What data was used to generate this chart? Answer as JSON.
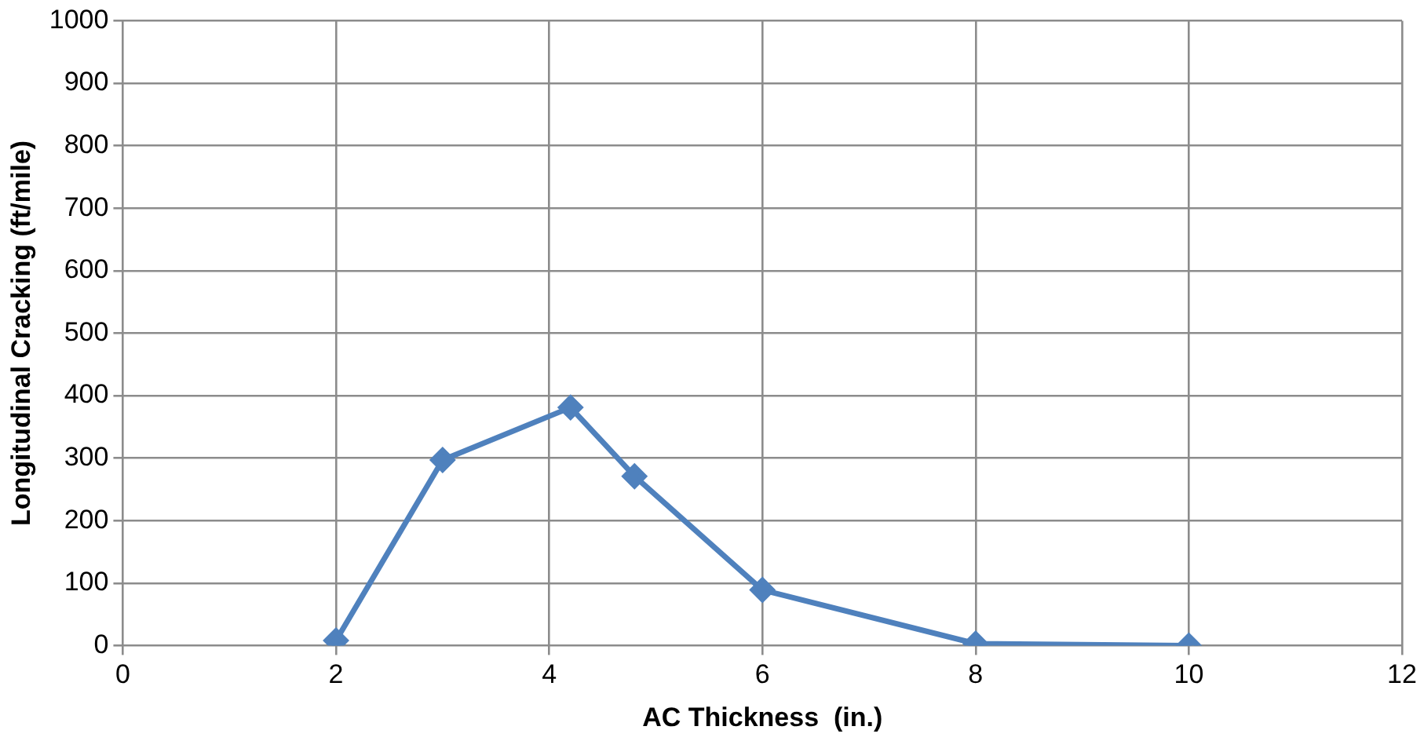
{
  "chart_data": {
    "type": "line",
    "xlabel": "AC Thickness  (in.)",
    "ylabel": "Longitudinal Cracking (ft/mile)",
    "x": [
      2,
      3,
      4.2,
      4.8,
      6,
      8,
      10
    ],
    "series": [
      {
        "color": "#4f81bd",
        "values": [
          8,
          297,
          381,
          271,
          89,
          3,
          0
        ]
      }
    ],
    "xlim": [
      0,
      12
    ],
    "xticks": [
      0,
      2,
      4,
      6,
      8,
      10,
      12
    ],
    "ylim": [
      0,
      1000
    ],
    "yticks": [
      0,
      100,
      200,
      300,
      400,
      500,
      600,
      700,
      800,
      900,
      1000
    ],
    "grid": true,
    "legend": false,
    "marker": "diamond",
    "line_style": "solid"
  }
}
